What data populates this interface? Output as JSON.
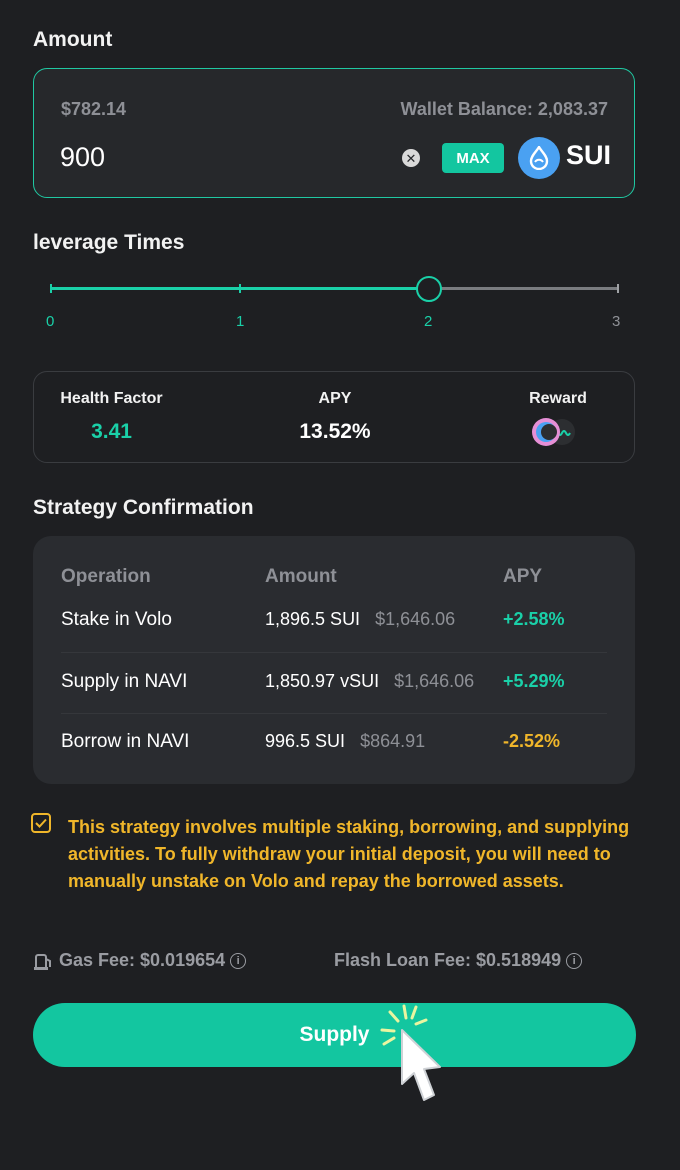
{
  "amount": {
    "title": "Amount",
    "usd_value": "$782.14",
    "wallet_balance": "Wallet Balance: 2,083.37",
    "input_value": "900",
    "max_label": "MAX",
    "token": "SUI"
  },
  "leverage": {
    "title": "leverage Times",
    "ticks": [
      "0",
      "1",
      "2",
      "3"
    ],
    "value": 2,
    "max": 3
  },
  "stats": {
    "health_label": "Health Factor",
    "health_value": "3.41",
    "apy_label": "APY",
    "apy_value": "13.52%",
    "reward_label": "Reward"
  },
  "strategy": {
    "title": "Strategy Confirmation",
    "headers": {
      "operation": "Operation",
      "amount": "Amount",
      "apy": "APY"
    },
    "rows": [
      {
        "operation": "Stake in Volo",
        "amount": "1,896.5 SUI",
        "usd": "$1,646.06",
        "apy": "+2.58%"
      },
      {
        "operation": "Supply in NAVI",
        "amount": "1,850.97 vSUI",
        "usd": "$1,646.06",
        "apy": "+5.29%"
      },
      {
        "operation": "Borrow in NAVI",
        "amount": "996.5 SUI",
        "usd": "$864.91",
        "apy": "-2.52%"
      }
    ]
  },
  "warning": {
    "text": "This strategy involves multiple staking, borrowing, and supplying activities. To fully withdraw your initial deposit, you will need to manually unstake on Volo and repay the borrowed assets."
  },
  "fees": {
    "gas": "Gas Fee: $0.019654",
    "flash_loan": "Flash Loan Fee: $0.518949"
  },
  "supply_label": "Supply",
  "colors": {
    "accent": "#13c6a0",
    "positive": "#1ad0a8",
    "negative": "#f0b62a",
    "background": "#1e1f22"
  }
}
